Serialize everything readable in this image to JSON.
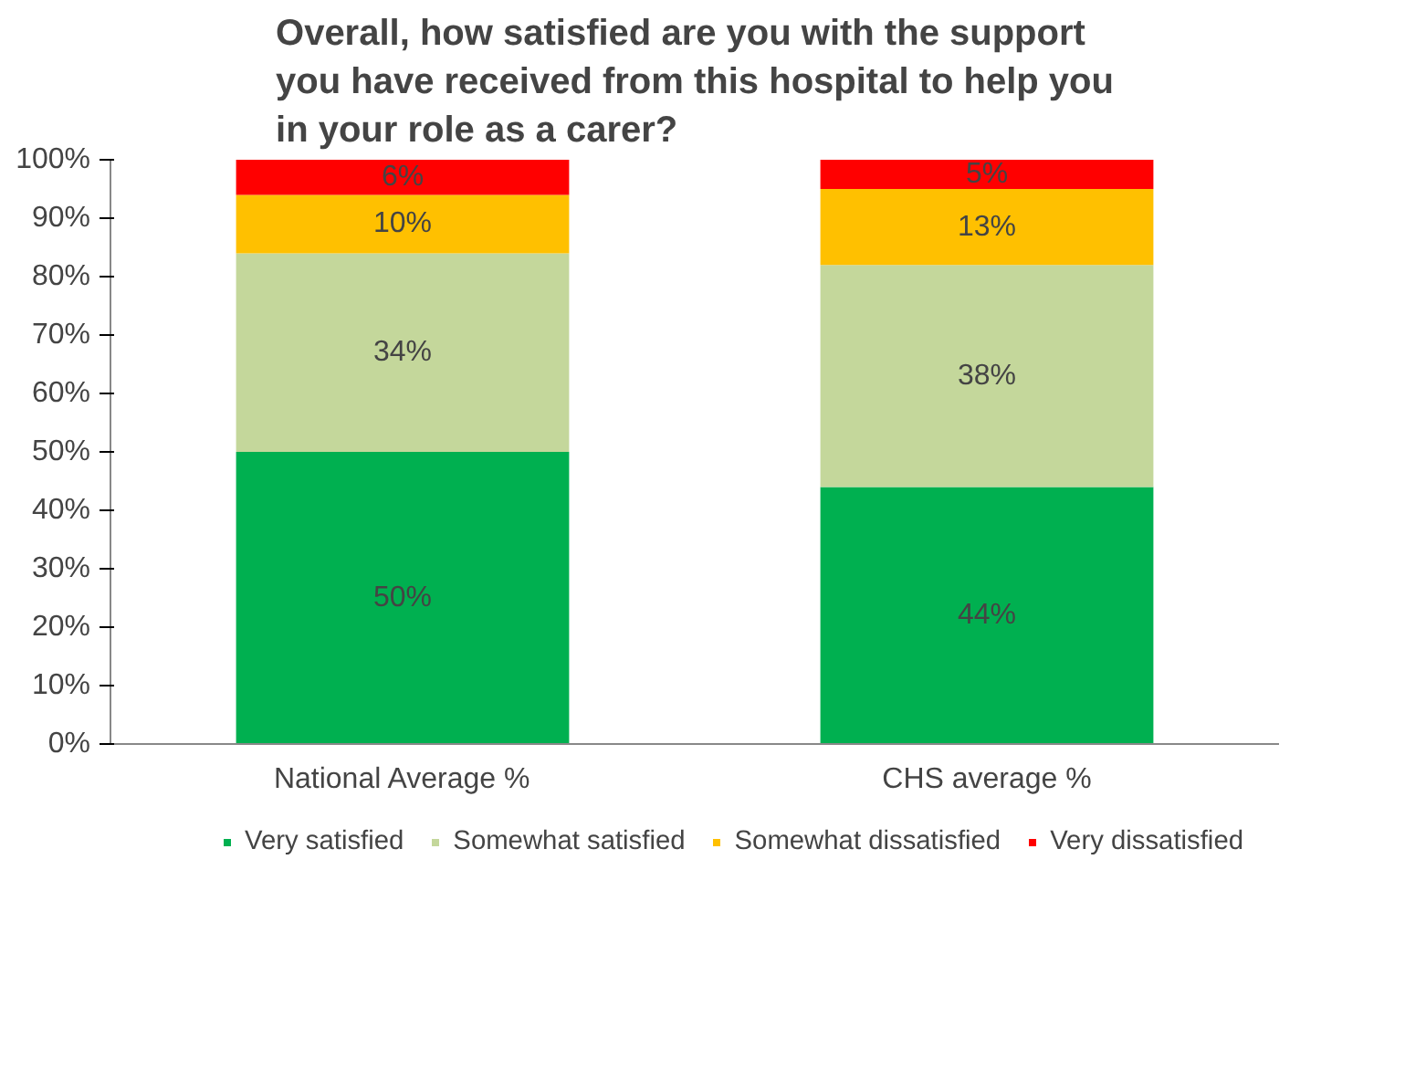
{
  "chart_data": {
    "type": "bar",
    "stacked": true,
    "title": "Overall, how satisfied are you with the support\nyou have received from this hospital to help you\nin your role as a carer?",
    "categories": [
      "National Average %",
      "CHS average %"
    ],
    "series": [
      {
        "name": "Very satisfied",
        "color": "#00b050",
        "values": [
          50,
          44
        ],
        "value_labels": [
          "50%",
          "44%"
        ]
      },
      {
        "name": "Somewhat satisfied",
        "color": "#c4d79b",
        "values": [
          34,
          38
        ],
        "value_labels": [
          "34%",
          "38%"
        ]
      },
      {
        "name": "Somewhat dissatisfied",
        "color": "#ffc000",
        "values": [
          10,
          13
        ],
        "value_labels": [
          "10%",
          "13%"
        ]
      },
      {
        "name": "Very dissatisfied",
        "color": "#ff0000",
        "values": [
          6,
          5
        ],
        "value_labels": [
          "6%",
          "5%"
        ]
      }
    ],
    "ylim": [
      0,
      100
    ],
    "yticks": [
      {
        "value": 0,
        "label": "0%"
      },
      {
        "value": 10,
        "label": "10%"
      },
      {
        "value": 20,
        "label": "20%"
      },
      {
        "value": 30,
        "label": "30%"
      },
      {
        "value": 40,
        "label": "40%"
      },
      {
        "value": 50,
        "label": "50%"
      },
      {
        "value": 60,
        "label": "60%"
      },
      {
        "value": 70,
        "label": "70%"
      },
      {
        "value": 80,
        "label": "80%"
      },
      {
        "value": 90,
        "label": "90%"
      },
      {
        "value": 100,
        "label": "100%"
      }
    ],
    "grid": false,
    "legend": "bottom"
  }
}
